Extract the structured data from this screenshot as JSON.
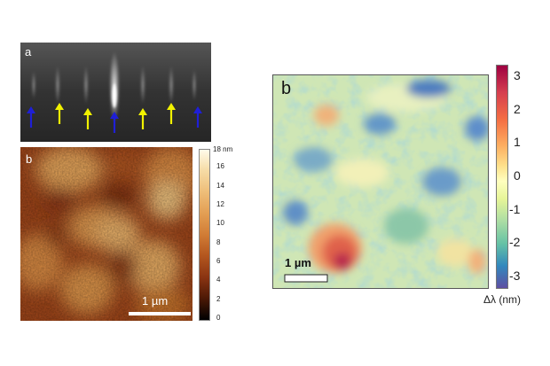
{
  "panel_a": {
    "label": "a",
    "arrow_colors": [
      "blue",
      "yellow",
      "yellow",
      "blue",
      "yellow",
      "yellow",
      "blue"
    ],
    "colors": {
      "blue": "#1f1fd6",
      "yellow": "#f2f200",
      "background": "#3f3f3f"
    }
  },
  "panel_b_left": {
    "label": "b",
    "scale_bar": "1 µm",
    "colorbar": {
      "unit": "18 nm",
      "ticks": [
        "16",
        "14",
        "12",
        "10",
        "8",
        "6",
        "4",
        "2",
        "0"
      ]
    }
  },
  "panel_b_right": {
    "label": "b",
    "scale_bar": "1 µm",
    "colorbar": {
      "ticks": [
        "3",
        "2",
        "1",
        "0",
        "-1",
        "-2",
        "-3"
      ],
      "label": "Δλ (nm)"
    }
  }
}
